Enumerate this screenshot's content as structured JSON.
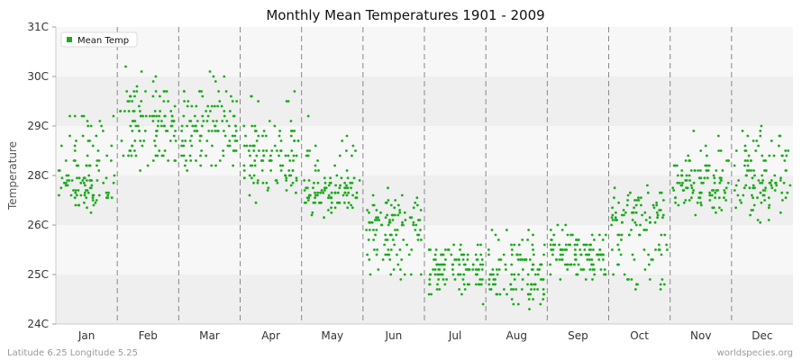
{
  "chart_data": {
    "type": "scatter",
    "title": "Monthly Mean Temperatures 1901 - 2009",
    "ylabel": "Temperature",
    "xlabel": "",
    "ylim": [
      24,
      31
    ],
    "y_scale": "piecewise: 24C-26C and 26C-31C as printed tick labels",
    "yticks": [
      "24C",
      "25C",
      "26C",
      "28C",
      "29C",
      "30C",
      "31C"
    ],
    "categories": [
      "Jan",
      "Feb",
      "Mar",
      "Apr",
      "May",
      "Jun",
      "Jul",
      "Aug",
      "Sep",
      "Oct",
      "Nov",
      "Dec"
    ],
    "grid": true,
    "legend_position": "top-left",
    "series": [
      {
        "name": "Mean Temp",
        "color": "#1aaa1a",
        "monthly_ranges": [
          {
            "month": "Jan",
            "min": 25.7,
            "max": 29.2,
            "typical": 27.9
          },
          {
            "month": "Feb",
            "min": 28.0,
            "max": 30.6,
            "typical": 29.1
          },
          {
            "month": "Mar",
            "min": 28.1,
            "max": 30.7,
            "typical": 29.0
          },
          {
            "month": "Apr",
            "min": 26.7,
            "max": 29.9,
            "typical": 28.4
          },
          {
            "month": "May",
            "min": 26.0,
            "max": 29.3,
            "typical": 27.6
          },
          {
            "month": "Jun",
            "min": 24.9,
            "max": 27.9,
            "typical": 25.9
          },
          {
            "month": "Jul",
            "min": 24.3,
            "max": 25.8,
            "typical": 25.1
          },
          {
            "month": "Aug",
            "min": 24.2,
            "max": 26.2,
            "typical": 25.1
          },
          {
            "month": "Sep",
            "min": 24.7,
            "max": 26.2,
            "typical": 25.4
          },
          {
            "month": "Oct",
            "min": 24.7,
            "max": 28.4,
            "typical": 26.1
          },
          {
            "month": "Nov",
            "min": 25.8,
            "max": 29.2,
            "typical": 27.7
          },
          {
            "month": "Dec",
            "min": 25.6,
            "max": 29.0,
            "typical": 27.8
          }
        ]
      }
    ],
    "footer_left": "Latitude 6.25 Longitude 5.25",
    "footer_right": "worldspecies.org"
  },
  "colors": {
    "point": "#1aaa1a",
    "band_light": "#f7f7f7",
    "band_dark": "#efefef",
    "grid_dashed": "#888888"
  }
}
